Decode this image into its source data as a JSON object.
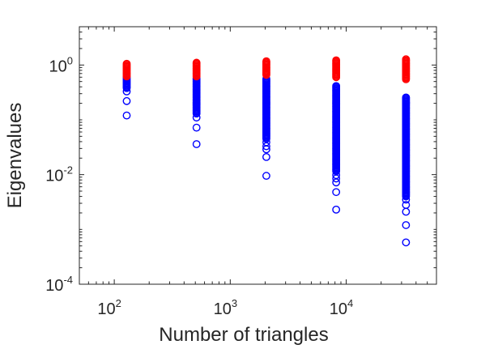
{
  "chart_data": {
    "type": "scatter",
    "xlabel": "Number of triangles",
    "ylabel": "Eigenvalues",
    "x_scale": "log",
    "y_scale": "log",
    "xlim": [
      50,
      60000
    ],
    "ylim": [
      0.0001,
      5
    ],
    "x_ticks": [
      {
        "base": "10",
        "exp": "2",
        "value": 100
      },
      {
        "base": "10",
        "exp": "3",
        "value": 1000
      },
      {
        "base": "10",
        "exp": "4",
        "value": 10000
      }
    ],
    "y_ticks": [
      {
        "base": "10",
        "exp": "0",
        "value": 1
      },
      {
        "base": "10",
        "exp": "-2",
        "value": 0.01
      },
      {
        "base": "10",
        "exp": "-4",
        "value": 0.0001
      }
    ],
    "grid": false,
    "marker": "open-circle",
    "series": [
      {
        "color": "#ff0000",
        "points": [
          {
            "x": 128,
            "y_min": 0.62,
            "y_max": 1.08
          },
          {
            "x": 512,
            "y_min": 0.62,
            "y_max": 1.12
          },
          {
            "x": 2048,
            "y_min": 0.66,
            "y_max": 1.18
          },
          {
            "x": 8192,
            "y_min": 0.6,
            "y_max": 1.25
          },
          {
            "x": 32768,
            "y_min": 0.55,
            "y_max": 1.3
          }
        ]
      },
      {
        "color": "#0000ff",
        "points": [
          {
            "x": 128,
            "y_band": [
              0.38,
              0.6
            ],
            "outliers": [
              0.33,
              0.22,
              0.12
            ]
          },
          {
            "x": 512,
            "y_band": [
              0.13,
              0.6
            ],
            "outliers": [
              0.11,
              0.072,
              0.036
            ]
          },
          {
            "x": 2048,
            "y_band": [
              0.045,
              0.58
            ],
            "outliers": [
              0.039,
              0.033,
              0.029,
              0.021,
              0.0095
            ]
          },
          {
            "x": 8192,
            "y_band": [
              0.0115,
              0.42
            ],
            "outliers": [
              0.0098,
              0.0085,
              0.0072,
              0.0048,
              0.0023
            ]
          },
          {
            "x": 32768,
            "y_band": [
              0.004,
              0.26
            ],
            "outliers": [
              0.0035,
              0.0028,
              0.0021,
              0.0012,
              0.00058
            ]
          }
        ]
      }
    ]
  }
}
